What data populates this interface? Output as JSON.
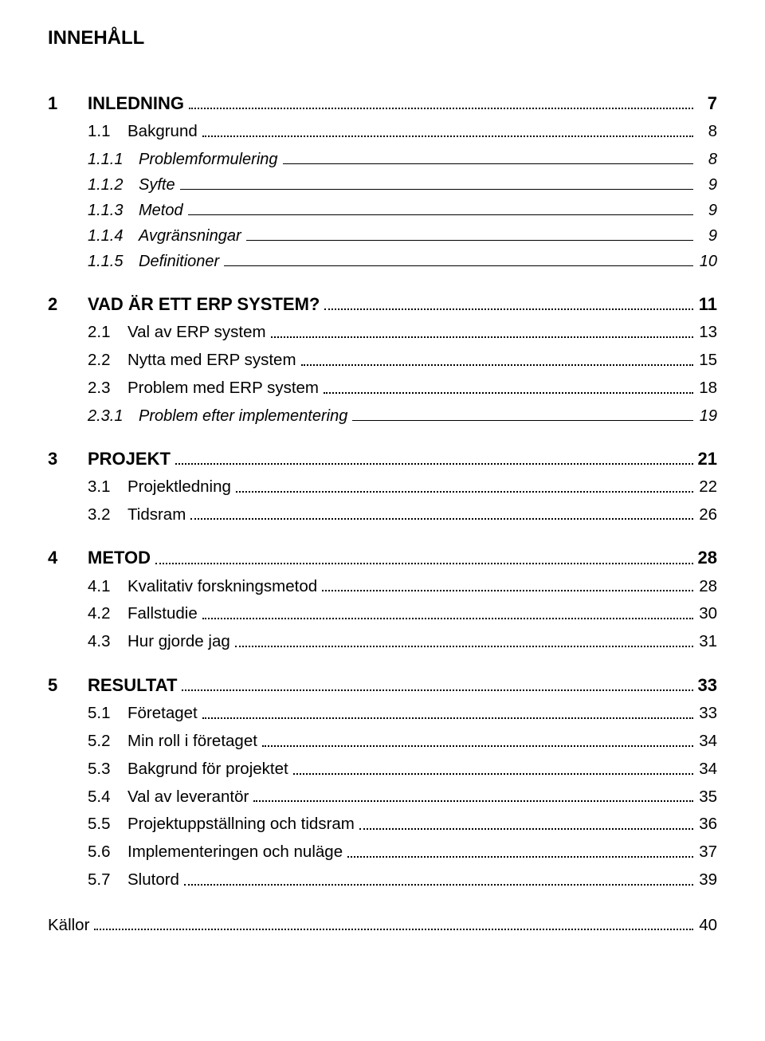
{
  "title": "INNEHÅLL",
  "entries": [
    {
      "level": 1,
      "num": "1",
      "text": "INLEDNING",
      "page": "7",
      "leader": "dots"
    },
    {
      "level": 2,
      "num": "1.1",
      "text": "Bakgrund",
      "page": "8",
      "leader": "dots"
    },
    {
      "level": 3,
      "num": "1.1.1",
      "text": "Problemformulering",
      "page": "8",
      "leader": "underline"
    },
    {
      "level": 3,
      "num": "1.1.2",
      "text": "Syfte",
      "page": "9",
      "leader": "underline"
    },
    {
      "level": 3,
      "num": "1.1.3",
      "text": "Metod",
      "page": "9",
      "leader": "underline"
    },
    {
      "level": 3,
      "num": "1.1.4",
      "text": "Avgränsningar",
      "page": "9",
      "leader": "underline"
    },
    {
      "level": 3,
      "num": "1.1.5",
      "text": "Definitioner",
      "page": "10",
      "leader": "underline"
    },
    {
      "level": 1,
      "num": "2",
      "text": "VAD ÄR ETT ERP SYSTEM?",
      "page": "11",
      "leader": "dots"
    },
    {
      "level": 2,
      "num": "2.1",
      "text": "Val av ERP system",
      "page": "13",
      "leader": "dots"
    },
    {
      "level": 2,
      "num": "2.2",
      "text": "Nytta med ERP system",
      "page": "15",
      "leader": "dots"
    },
    {
      "level": 2,
      "num": "2.3",
      "text": "Problem med ERP system",
      "page": "18",
      "leader": "dots"
    },
    {
      "level": 3,
      "num": "2.3.1",
      "text": "Problem efter implementering",
      "page": "19",
      "leader": "underline"
    },
    {
      "level": 1,
      "num": "3",
      "text": "PROJEKT",
      "page": "21",
      "leader": "dots"
    },
    {
      "level": 2,
      "num": "3.1",
      "text": "Projektledning",
      "page": "22",
      "leader": "dots"
    },
    {
      "level": 2,
      "num": "3.2",
      "text": "Tidsram",
      "page": "26",
      "leader": "dots"
    },
    {
      "level": 1,
      "num": "4",
      "text": "METOD",
      "page": "28",
      "leader": "dots"
    },
    {
      "level": 2,
      "num": "4.1",
      "text": "Kvalitativ forskningsmetod",
      "page": "28",
      "leader": "dots"
    },
    {
      "level": 2,
      "num": "4.2",
      "text": "Fallstudie",
      "page": "30",
      "leader": "dots"
    },
    {
      "level": 2,
      "num": "4.3",
      "text": "Hur gjorde jag",
      "page": "31",
      "leader": "dots"
    },
    {
      "level": 1,
      "num": "5",
      "text": "RESULTAT",
      "page": "33",
      "leader": "dots"
    },
    {
      "level": 2,
      "num": "5.1",
      "text": "Företaget",
      "page": "33",
      "leader": "dots"
    },
    {
      "level": 2,
      "num": "5.2",
      "text": "Min roll i företaget",
      "page": "34",
      "leader": "dots"
    },
    {
      "level": 2,
      "num": "5.3",
      "text": "Bakgrund för projektet",
      "page": "34",
      "leader": "dots"
    },
    {
      "level": 2,
      "num": "5.4",
      "text": "Val av leverantör",
      "page": "35",
      "leader": "dots"
    },
    {
      "level": 2,
      "num": "5.5",
      "text": "Projektuppställning och tidsram",
      "page": "36",
      "leader": "dots"
    },
    {
      "level": 2,
      "num": "5.6",
      "text": "Implementeringen och nuläge",
      "page": "37",
      "leader": "dots"
    },
    {
      "level": 2,
      "num": "5.7",
      "text": "Slutord",
      "page": "39",
      "leader": "dots"
    }
  ],
  "sources": {
    "text": "Källor",
    "page": "40",
    "leader": "dots"
  }
}
